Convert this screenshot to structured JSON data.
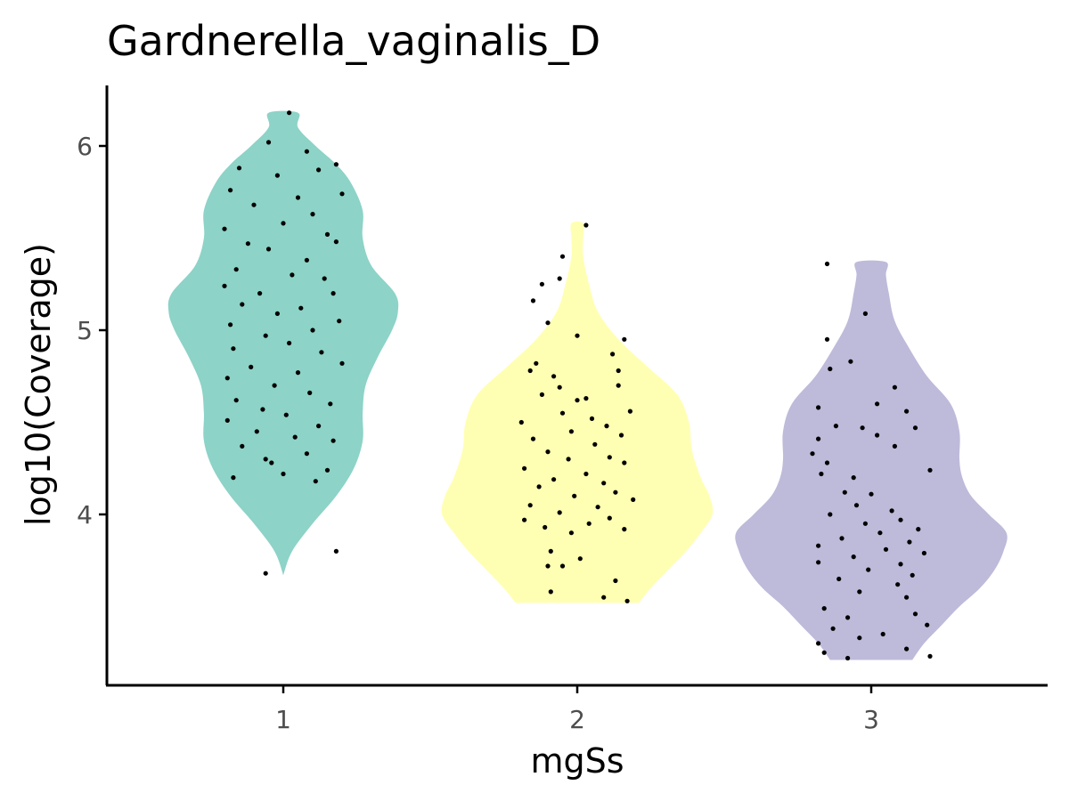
{
  "chart_data": {
    "type": "violin",
    "title": "Gardnerella_vaginalis_D",
    "xlabel": "mgSs",
    "ylabel": "log10(Coverage)",
    "categories": [
      "1",
      "2",
      "3"
    ],
    "ylim": [
      3.1,
      6.33
    ],
    "yticks": [
      4,
      5,
      6
    ],
    "grid": false,
    "legend": "none",
    "colors": [
      "#8dd3c7",
      "#ffffb3",
      "#bebada"
    ],
    "point_color": "#000000",
    "violins": [
      {
        "category": "1",
        "min": 3.67,
        "max": 6.18,
        "profile": [
          [
            3.67,
            0.0
          ],
          [
            3.8,
            0.03
          ],
          [
            3.95,
            0.1
          ],
          [
            4.1,
            0.18
          ],
          [
            4.25,
            0.24
          ],
          [
            4.4,
            0.27
          ],
          [
            4.55,
            0.27
          ],
          [
            4.7,
            0.28
          ],
          [
            4.85,
            0.32
          ],
          [
            5.0,
            0.37
          ],
          [
            5.1,
            0.39
          ],
          [
            5.2,
            0.38
          ],
          [
            5.35,
            0.3
          ],
          [
            5.5,
            0.27
          ],
          [
            5.65,
            0.27
          ],
          [
            5.8,
            0.23
          ],
          [
            5.9,
            0.18
          ],
          [
            6.0,
            0.11
          ],
          [
            6.1,
            0.05
          ],
          [
            6.18,
            0.05
          ]
        ],
        "points": [
          [
            0.02,
            6.18
          ],
          [
            -0.05,
            6.02
          ],
          [
            0.08,
            5.97
          ],
          [
            -0.15,
            5.88
          ],
          [
            0.12,
            5.87
          ],
          [
            0.18,
            5.9
          ],
          [
            -0.18,
            5.76
          ],
          [
            -0.02,
            5.84
          ],
          [
            0.05,
            5.72
          ],
          [
            0.2,
            5.74
          ],
          [
            -0.1,
            5.68
          ],
          [
            0.1,
            5.63
          ],
          [
            -0.2,
            5.55
          ],
          [
            0.0,
            5.58
          ],
          [
            0.15,
            5.52
          ],
          [
            -0.12,
            5.47
          ],
          [
            0.18,
            5.48
          ],
          [
            -0.05,
            5.44
          ],
          [
            0.08,
            5.38
          ],
          [
            -0.16,
            5.33
          ],
          [
            0.03,
            5.3
          ],
          [
            0.14,
            5.28
          ],
          [
            -0.2,
            5.24
          ],
          [
            -0.08,
            5.2
          ],
          [
            0.17,
            5.2
          ],
          [
            -0.14,
            5.14
          ],
          [
            0.06,
            5.12
          ],
          [
            -0.02,
            5.09
          ],
          [
            0.19,
            5.05
          ],
          [
            -0.18,
            5.03
          ],
          [
            0.1,
            5.0
          ],
          [
            -0.06,
            4.97
          ],
          [
            0.02,
            4.93
          ],
          [
            -0.17,
            4.9
          ],
          [
            0.13,
            4.88
          ],
          [
            0.2,
            4.82
          ],
          [
            -0.11,
            4.8
          ],
          [
            0.05,
            4.77
          ],
          [
            -0.19,
            4.74
          ],
          [
            -0.03,
            4.7
          ],
          [
            0.09,
            4.66
          ],
          [
            -0.16,
            4.62
          ],
          [
            0.16,
            4.6
          ],
          [
            -0.07,
            4.57
          ],
          [
            0.01,
            4.54
          ],
          [
            -0.19,
            4.51
          ],
          [
            0.12,
            4.48
          ],
          [
            -0.09,
            4.45
          ],
          [
            0.04,
            4.42
          ],
          [
            0.17,
            4.4
          ],
          [
            -0.14,
            4.37
          ],
          [
            0.08,
            4.33
          ],
          [
            -0.04,
            4.28
          ],
          [
            0.15,
            4.24
          ],
          [
            -0.17,
            4.2
          ],
          [
            0.0,
            4.22
          ],
          [
            0.11,
            4.18
          ],
          [
            -0.06,
            4.3
          ],
          [
            0.18,
            3.8
          ],
          [
            -0.06,
            3.68
          ]
        ]
      },
      {
        "category": "2",
        "min": 3.52,
        "max": 5.58,
        "profile": [
          [
            3.52,
            0.21
          ],
          [
            3.6,
            0.25
          ],
          [
            3.7,
            0.31
          ],
          [
            3.8,
            0.37
          ],
          [
            3.9,
            0.42
          ],
          [
            4.0,
            0.46
          ],
          [
            4.1,
            0.45
          ],
          [
            4.2,
            0.42
          ],
          [
            4.35,
            0.39
          ],
          [
            4.5,
            0.38
          ],
          [
            4.65,
            0.34
          ],
          [
            4.8,
            0.24
          ],
          [
            4.95,
            0.14
          ],
          [
            5.1,
            0.07
          ],
          [
            5.25,
            0.04
          ],
          [
            5.4,
            0.02
          ],
          [
            5.5,
            0.02
          ],
          [
            5.58,
            0.02
          ]
        ],
        "points": [
          [
            0.03,
            5.57
          ],
          [
            -0.05,
            5.4
          ],
          [
            -0.12,
            5.25
          ],
          [
            -0.06,
            5.28
          ],
          [
            -0.15,
            5.16
          ],
          [
            -0.1,
            5.04
          ],
          [
            0.0,
            4.97
          ],
          [
            0.16,
            4.95
          ],
          [
            0.12,
            4.87
          ],
          [
            -0.14,
            4.82
          ],
          [
            -0.16,
            4.78
          ],
          [
            0.14,
            4.78
          ],
          [
            -0.08,
            4.75
          ],
          [
            0.14,
            4.7
          ],
          [
            -0.06,
            4.69
          ],
          [
            0.0,
            4.62
          ],
          [
            0.03,
            4.63
          ],
          [
            -0.12,
            4.65
          ],
          [
            0.18,
            4.56
          ],
          [
            -0.05,
            4.55
          ],
          [
            0.05,
            4.52
          ],
          [
            -0.19,
            4.5
          ],
          [
            0.1,
            4.48
          ],
          [
            -0.02,
            4.45
          ],
          [
            0.15,
            4.43
          ],
          [
            -0.15,
            4.41
          ],
          [
            0.06,
            4.38
          ],
          [
            -0.1,
            4.34
          ],
          [
            0.11,
            4.31
          ],
          [
            -0.03,
            4.3
          ],
          [
            0.16,
            4.28
          ],
          [
            -0.18,
            4.25
          ],
          [
            0.03,
            4.22
          ],
          [
            -0.08,
            4.19
          ],
          [
            0.09,
            4.17
          ],
          [
            -0.13,
            4.15
          ],
          [
            0.13,
            4.12
          ],
          [
            -0.01,
            4.1
          ],
          [
            0.19,
            4.08
          ],
          [
            -0.16,
            4.05
          ],
          [
            0.07,
            4.04
          ],
          [
            -0.06,
            4.01
          ],
          [
            0.11,
            3.98
          ],
          [
            -0.18,
            3.97
          ],
          [
            0.04,
            3.95
          ],
          [
            -0.11,
            3.93
          ],
          [
            0.16,
            3.92
          ],
          [
            -0.02,
            3.9
          ],
          [
            0.01,
            3.76
          ],
          [
            -0.09,
            3.8
          ],
          [
            -0.1,
            3.72
          ],
          [
            0.13,
            3.64
          ],
          [
            -0.05,
            3.72
          ],
          [
            -0.09,
            3.58
          ],
          [
            0.09,
            3.55
          ],
          [
            0.17,
            3.53
          ]
        ]
      },
      {
        "category": "3",
        "min": 3.21,
        "max": 5.37,
        "profile": [
          [
            3.21,
            0.14
          ],
          [
            3.3,
            0.18
          ],
          [
            3.4,
            0.24
          ],
          [
            3.5,
            0.3
          ],
          [
            3.6,
            0.37
          ],
          [
            3.7,
            0.42
          ],
          [
            3.8,
            0.45
          ],
          [
            3.9,
            0.46
          ],
          [
            4.0,
            0.4
          ],
          [
            4.1,
            0.34
          ],
          [
            4.2,
            0.31
          ],
          [
            4.3,
            0.3
          ],
          [
            4.45,
            0.3
          ],
          [
            4.6,
            0.27
          ],
          [
            4.75,
            0.19
          ],
          [
            4.9,
            0.13
          ],
          [
            5.05,
            0.08
          ],
          [
            5.2,
            0.06
          ],
          [
            5.3,
            0.05
          ],
          [
            5.37,
            0.05
          ]
        ],
        "points": [
          [
            -0.15,
            5.36
          ],
          [
            -0.02,
            5.09
          ],
          [
            -0.15,
            4.95
          ],
          [
            -0.14,
            4.79
          ],
          [
            -0.07,
            4.83
          ],
          [
            0.08,
            4.69
          ],
          [
            0.02,
            4.6
          ],
          [
            0.12,
            4.56
          ],
          [
            -0.18,
            4.58
          ],
          [
            -0.12,
            4.48
          ],
          [
            -0.03,
            4.47
          ],
          [
            0.15,
            4.47
          ],
          [
            -0.18,
            4.41
          ],
          [
            0.02,
            4.43
          ],
          [
            0.08,
            4.37
          ],
          [
            -0.2,
            4.33
          ],
          [
            -0.15,
            4.28
          ],
          [
            0.2,
            4.24
          ],
          [
            -0.17,
            4.22
          ],
          [
            -0.06,
            4.2
          ],
          [
            -0.09,
            4.12
          ],
          [
            0.0,
            4.11
          ],
          [
            -0.05,
            4.05
          ],
          [
            0.07,
            4.02
          ],
          [
            -0.14,
            4.0
          ],
          [
            0.1,
            3.97
          ],
          [
            -0.02,
            3.95
          ],
          [
            0.16,
            3.92
          ],
          [
            0.03,
            3.9
          ],
          [
            -0.1,
            3.87
          ],
          [
            0.13,
            3.85
          ],
          [
            -0.18,
            3.83
          ],
          [
            0.05,
            3.81
          ],
          [
            0.18,
            3.79
          ],
          [
            -0.06,
            3.77
          ],
          [
            -0.18,
            3.74
          ],
          [
            0.1,
            3.73
          ],
          [
            -0.01,
            3.7
          ],
          [
            0.14,
            3.67
          ],
          [
            -0.11,
            3.65
          ],
          [
            0.09,
            3.62
          ],
          [
            -0.04,
            3.58
          ],
          [
            0.12,
            3.55
          ],
          [
            -0.16,
            3.49
          ],
          [
            0.15,
            3.46
          ],
          [
            -0.08,
            3.44
          ],
          [
            0.19,
            3.4
          ],
          [
            -0.13,
            3.38
          ],
          [
            0.04,
            3.35
          ],
          [
            -0.04,
            3.33
          ],
          [
            -0.18,
            3.3
          ],
          [
            0.12,
            3.27
          ],
          [
            -0.16,
            3.25
          ],
          [
            0.2,
            3.23
          ],
          [
            -0.08,
            3.22
          ]
        ]
      }
    ]
  }
}
